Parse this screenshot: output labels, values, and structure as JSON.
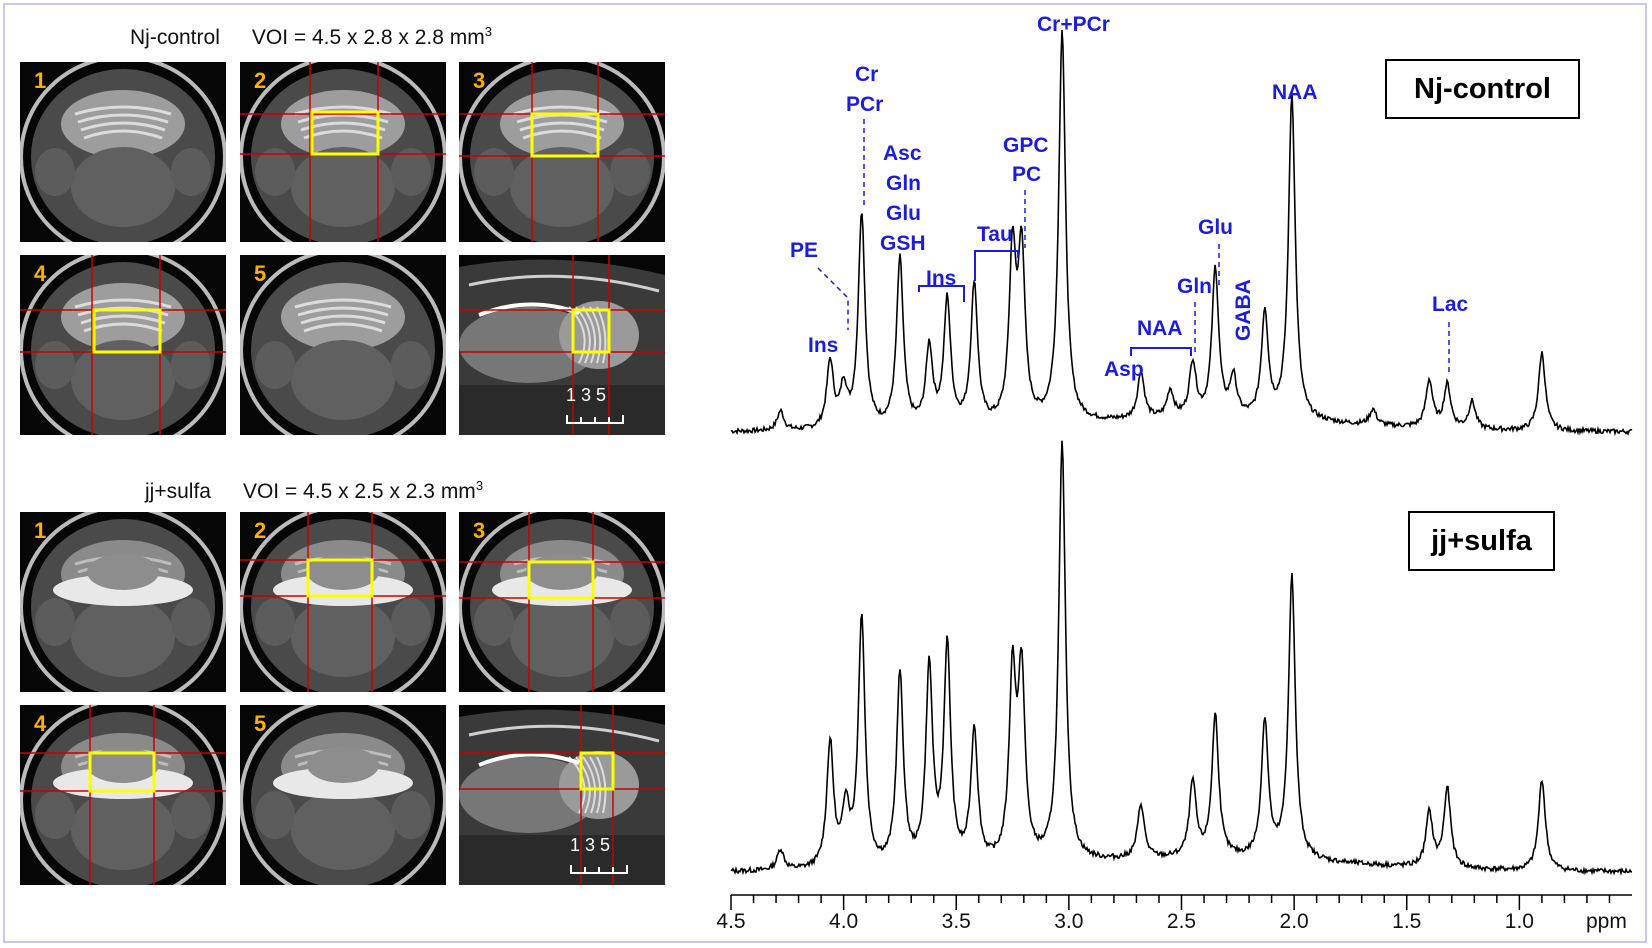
{
  "panels": [
    {
      "id": "top",
      "group_label": "Nj-control",
      "voi_text": "VOI = 4.5 x 2.8 x 2.8 mm",
      "voi_exp": "3",
      "image_numbers": [
        "1",
        "2",
        "3",
        "4",
        "5"
      ],
      "scale_text": "1 3 5",
      "spectrum_label": "Nj-control"
    },
    {
      "id": "bottom",
      "group_label": "jj+sulfa",
      "voi_text": "VOI = 4.5 x 2.5 x 2.3 mm",
      "voi_exp": "3",
      "image_numbers": [
        "1",
        "2",
        "3",
        "4",
        "5"
      ],
      "scale_text": "1 3 5",
      "spectrum_label": "jj+sulfa"
    }
  ],
  "annotations": {
    "pe": "PE",
    "ins_left": "Ins",
    "cr": "Cr",
    "pcr": "PCr",
    "asc": "Asc",
    "gln": "Gln",
    "glu": "Glu",
    "gsh": "GSH",
    "ins_mid": "Ins",
    "tau": "Tau",
    "gpc": "GPC",
    "pc": "PC",
    "cr_pcr": "Cr+PCr",
    "asp": "Asp",
    "naa_bracket": "NAA",
    "gln_right": "Gln",
    "glu_right": "Glu",
    "gaba": "GABA",
    "naa_peak": "NAA",
    "lac": "Lac"
  },
  "colors": {
    "annotation": "#1d1dd8",
    "voi_box": "#ffff00",
    "crosshair": "#cc0000",
    "image_number": "#ffb000",
    "spectrum_line": "#000000",
    "frame": "#c8c8ee"
  },
  "chart_data": {
    "type": "line",
    "xlabel": "ppm",
    "x_reversed": true,
    "xlim": [
      4.5,
      0.5
    ],
    "xticks": [
      "4.5",
      "4.0",
      "3.5",
      "3.0",
      "2.5",
      "2.0",
      "1.5",
      "1.0"
    ],
    "series": [
      {
        "name": "Nj-control",
        "peaks": [
          {
            "ppm": 4.28,
            "height": 0.05
          },
          {
            "ppm": 4.06,
            "height": 0.17
          },
          {
            "ppm": 4.0,
            "height": 0.1
          },
          {
            "ppm": 3.92,
            "height": 0.55
          },
          {
            "ppm": 3.75,
            "height": 0.43
          },
          {
            "ppm": 3.62,
            "height": 0.2
          },
          {
            "ppm": 3.54,
            "height": 0.32
          },
          {
            "ppm": 3.42,
            "height": 0.36
          },
          {
            "ppm": 3.25,
            "height": 0.43
          },
          {
            "ppm": 3.21,
            "height": 0.43
          },
          {
            "ppm": 3.03,
            "height": 1.0
          },
          {
            "ppm": 2.68,
            "height": 0.12
          },
          {
            "ppm": 2.55,
            "height": 0.07
          },
          {
            "ppm": 2.45,
            "height": 0.14
          },
          {
            "ppm": 2.35,
            "height": 0.38
          },
          {
            "ppm": 2.27,
            "height": 0.1
          },
          {
            "ppm": 2.13,
            "height": 0.27
          },
          {
            "ppm": 2.01,
            "height": 0.83
          },
          {
            "ppm": 1.65,
            "height": 0.04
          },
          {
            "ppm": 1.4,
            "height": 0.12
          },
          {
            "ppm": 1.32,
            "height": 0.11
          },
          {
            "ppm": 1.21,
            "height": 0.07
          },
          {
            "ppm": 0.9,
            "height": 0.2
          }
        ]
      },
      {
        "name": "jj+sulfa",
        "peaks": [
          {
            "ppm": 4.28,
            "height": 0.05
          },
          {
            "ppm": 4.06,
            "height": 0.3
          },
          {
            "ppm": 3.99,
            "height": 0.14
          },
          {
            "ppm": 3.92,
            "height": 0.6
          },
          {
            "ppm": 3.75,
            "height": 0.46
          },
          {
            "ppm": 3.62,
            "height": 0.47
          },
          {
            "ppm": 3.54,
            "height": 0.52
          },
          {
            "ppm": 3.42,
            "height": 0.32
          },
          {
            "ppm": 3.25,
            "height": 0.44
          },
          {
            "ppm": 3.21,
            "height": 0.44
          },
          {
            "ppm": 3.03,
            "height": 1.0
          },
          {
            "ppm": 2.68,
            "height": 0.13
          },
          {
            "ppm": 2.45,
            "height": 0.18
          },
          {
            "ppm": 2.35,
            "height": 0.34
          },
          {
            "ppm": 2.13,
            "height": 0.33
          },
          {
            "ppm": 2.01,
            "height": 0.68
          },
          {
            "ppm": 1.4,
            "height": 0.13
          },
          {
            "ppm": 1.32,
            "height": 0.19
          },
          {
            "ppm": 0.9,
            "height": 0.22
          }
        ]
      }
    ]
  }
}
